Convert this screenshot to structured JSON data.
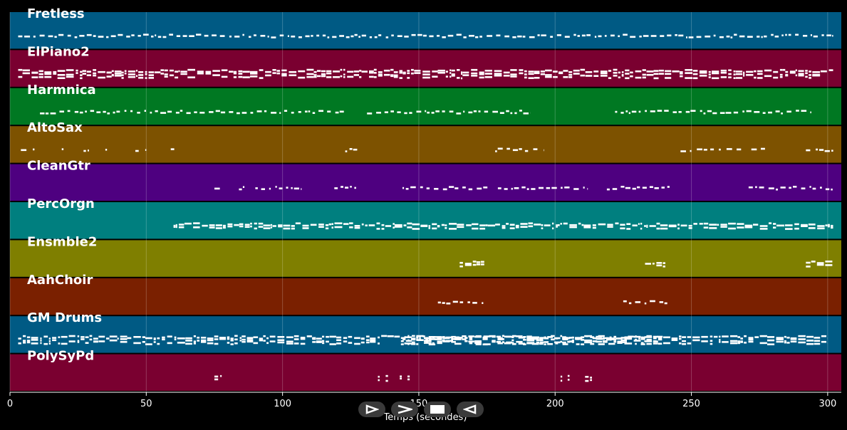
{
  "chart_data": {
    "type": "piano-roll",
    "xlabel": "Temps (secondes)",
    "xlim": [
      0,
      305
    ],
    "xticks": [
      0,
      50,
      100,
      150,
      200,
      250,
      300
    ],
    "grid": true,
    "tracks": [
      {
        "name": "Fretless",
        "color": "#005a84",
        "segments": [
          [
            3,
            302
          ]
        ],
        "density": "medium",
        "rows": 1
      },
      {
        "name": "ElPiano2",
        "color": "#7a0030",
        "segments": [
          [
            3,
            302
          ]
        ],
        "density": "dense",
        "rows": 3
      },
      {
        "name": "Harmnica",
        "color": "#007822",
        "segments": [
          [
            11,
            123
          ],
          [
            131,
            191
          ],
          [
            222,
            294
          ]
        ],
        "density": "medium",
        "rows": 1
      },
      {
        "name": "AltoSax",
        "color": "#7d5200",
        "segments": [
          [
            4,
            9
          ],
          [
            19,
            21
          ],
          [
            27,
            29
          ],
          [
            35,
            37
          ],
          [
            46,
            50
          ],
          [
            59,
            61
          ],
          [
            123,
            128
          ],
          [
            178,
            196
          ],
          [
            246,
            250
          ],
          [
            252,
            270
          ],
          [
            272,
            277
          ],
          [
            292,
            302
          ]
        ],
        "density": "sparse",
        "rows": 1
      },
      {
        "name": "CleanGtr",
        "color": "#4e0080",
        "segments": [
          [
            75,
            77
          ],
          [
            84,
            86
          ],
          [
            90,
            107
          ],
          [
            119,
            127
          ],
          [
            144,
            176
          ],
          [
            179,
            212
          ],
          [
            219,
            242
          ],
          [
            271,
            302
          ]
        ],
        "density": "medium",
        "rows": 1
      },
      {
        "name": "PercOrgn",
        "color": "#007f7f",
        "segments": [
          [
            60,
            302
          ]
        ],
        "density": "dense",
        "rows": 2
      },
      {
        "name": "Ensmble2",
        "color": "#7f7f00",
        "segments": [
          [
            165,
            174
          ],
          [
            233,
            241
          ],
          [
            292,
            302
          ]
        ],
        "density": "dense",
        "rows": 2
      },
      {
        "name": "AahChoir",
        "color": "#7a2000",
        "segments": [
          [
            157,
            174
          ],
          [
            225,
            242
          ]
        ],
        "density": "medium",
        "rows": 1
      },
      {
        "name": "GM Drums",
        "color": "#005a84",
        "segments": [
          [
            3,
            240
          ],
          [
            144,
            300
          ]
        ],
        "density": "dense",
        "rows": 3
      },
      {
        "name": "PolySyPd",
        "color": "#7a0030",
        "segments": [
          [
            75,
            78
          ],
          [
            135,
            139
          ],
          [
            143,
            147
          ],
          [
            202,
            206
          ],
          [
            211,
            214
          ]
        ],
        "density": "sparse",
        "rows": 2
      }
    ]
  },
  "controls": [
    {
      "name": "forward-button",
      "icon": "triangle-right-outline-icon"
    },
    {
      "name": "next-button",
      "icon": "chevron-right-icon"
    },
    {
      "name": "stop-button",
      "icon": "square-icon"
    },
    {
      "name": "back-button",
      "icon": "triangle-left-outline-icon"
    }
  ]
}
